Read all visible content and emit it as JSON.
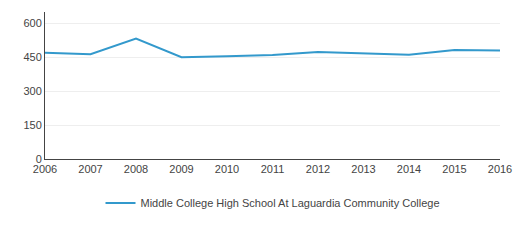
{
  "chart_data": {
    "type": "line",
    "x": [
      2006,
      2007,
      2008,
      2009,
      2010,
      2011,
      2012,
      2013,
      2014,
      2015,
      2016
    ],
    "series": [
      {
        "name": "Middle College High School At Laguardia Community College",
        "color": "#3399cc",
        "values": [
          470,
          463,
          533,
          450,
          454,
          460,
          473,
          467,
          461,
          482,
          480
        ]
      }
    ],
    "xlim": [
      2006,
      2016
    ],
    "xticks": [
      2006,
      2007,
      2008,
      2009,
      2010,
      2011,
      2012,
      2013,
      2014,
      2015,
      2016
    ],
    "ylim": [
      0,
      650
    ],
    "yticks": [
      0,
      150,
      300,
      450,
      600
    ],
    "grid": "y",
    "legend": "bottom"
  }
}
